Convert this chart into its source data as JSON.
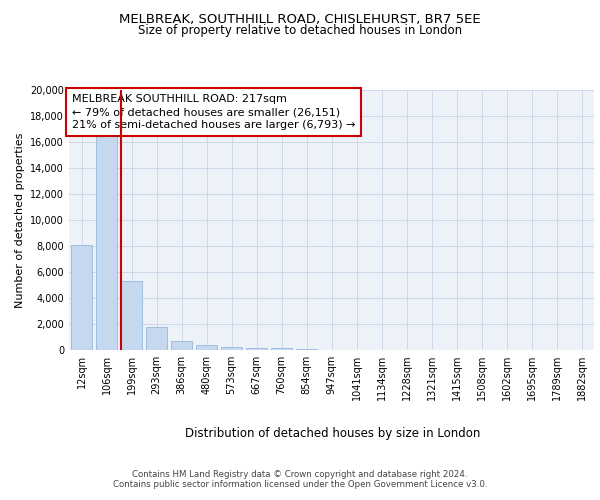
{
  "title": "MELBREAK, SOUTHHILL ROAD, CHISLEHURST, BR7 5EE",
  "subtitle": "Size of property relative to detached houses in London",
  "xlabel": "Distribution of detached houses by size in London",
  "ylabel": "Number of detached properties",
  "categories": [
    "12sqm",
    "106sqm",
    "199sqm",
    "293sqm",
    "386sqm",
    "480sqm",
    "573sqm",
    "667sqm",
    "760sqm",
    "854sqm",
    "947sqm",
    "1041sqm",
    "1134sqm",
    "1228sqm",
    "1321sqm",
    "1415sqm",
    "1508sqm",
    "1602sqm",
    "1695sqm",
    "1789sqm",
    "1882sqm"
  ],
  "values": [
    8100,
    16600,
    5300,
    1800,
    700,
    350,
    210,
    155,
    130,
    100,
    0,
    0,
    0,
    0,
    0,
    0,
    0,
    0,
    0,
    0,
    0
  ],
  "bar_color": "#c5d8f0",
  "bar_edge_color": "#8ab0d8",
  "vline_color": "#cc0000",
  "vline_index": 2,
  "annotation_title": "MELBREAK SOUTHHILL ROAD: 217sqm",
  "annotation_line1": "← 79% of detached houses are smaller (26,151)",
  "annotation_line2": "21% of semi-detached houses are larger (6,793) →",
  "annotation_box_color": "#ffffff",
  "annotation_border_color": "#cc0000",
  "ylim": [
    0,
    20000
  ],
  "yticks": [
    0,
    2000,
    4000,
    6000,
    8000,
    10000,
    12000,
    14000,
    16000,
    18000,
    20000
  ],
  "grid_color": "#c8d4e8",
  "bg_color": "#edf2f9",
  "footer1": "Contains HM Land Registry data © Crown copyright and database right 2024.",
  "footer2": "Contains public sector information licensed under the Open Government Licence v3.0.",
  "title_fontsize": 9.5,
  "subtitle_fontsize": 8.5,
  "xlabel_fontsize": 8.5,
  "ylabel_fontsize": 8,
  "tick_fontsize": 7,
  "annotation_fontsize": 8,
  "footer_fontsize": 6.2
}
